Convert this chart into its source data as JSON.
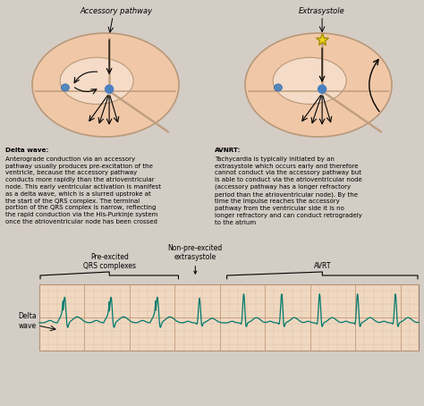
{
  "bg_color": "#d4cdc6",
  "heart_fill": "#f0c8a8",
  "heart_edge": "#b89878",
  "teal_color": "#008080",
  "text_color": "#000000",
  "title1": "Accessory pathway",
  "title2": "Extrasystole",
  "label_delta": "Delta\nwave",
  "label_preexcited": "Pre-excited\nQRS complexes",
  "label_nonpreexcited": "Non-pre-excited\nextrasystole",
  "label_avrt": "AVRT",
  "desc1_title": "Delta wave:",
  "desc1": "Anterograde conduction via an accessory\npathway usually produces pre-excitation of the\nventricle, because the accessory pathway\nconducts more rapidly than the atrioventricular\nnode. This early ventricular activation is manifest\nas a delta wave, which is a slurred upstroke at\nthe start of the QRS complex. The terminal\nportion of the QRS complex is narrow, reflecting\nthe rapid conduction via the His-Purkinje system\nonce the atrioventricular node has been crossed",
  "desc2_title": "AVNRT:",
  "desc2": "Tachycardia is typically initiated by an\nextrasystole which occurs early and therefore\ncannot conduct via the accessory pathway but\nis able to conduct via the atrioventricular node\n(accessory pathway has a longer refractory\nperiod than the atrioventricular node). By the\ntime the impulse reaches the accessory\npathway from the ventricular side it is no\nlonger refractory and can conduct retrogradely\nto the atrium",
  "ecg_color": "#007a6e",
  "grid_major_color": "#c8a090",
  "grid_minor_color": "#dbb8a8"
}
